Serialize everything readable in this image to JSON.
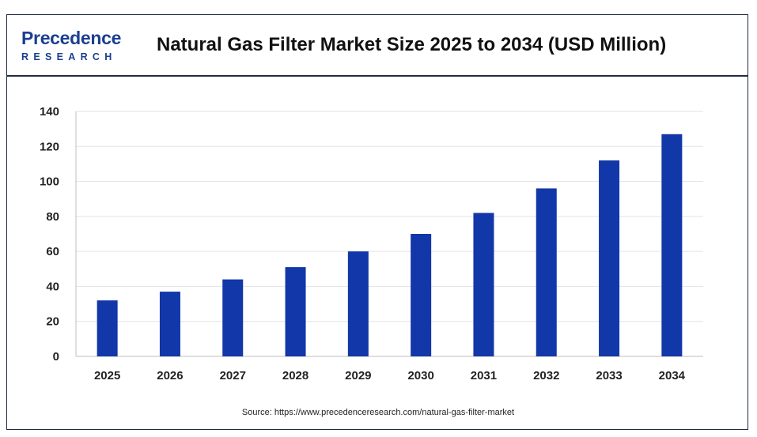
{
  "header": {
    "logo_main": "Precedence",
    "logo_sub": "RESEARCH"
  },
  "chart_data": {
    "type": "bar",
    "title": "Natural Gas Filter Market Size 2025 to 2034 (USD Million)",
    "categories": [
      "2025",
      "2026",
      "2027",
      "2028",
      "2029",
      "2030",
      "2031",
      "2032",
      "2033",
      "2034"
    ],
    "values": [
      32,
      37,
      44,
      51,
      60,
      70,
      82,
      96,
      112,
      127
    ],
    "ylim": [
      0,
      140
    ],
    "yticks": [
      0,
      20,
      40,
      60,
      80,
      100,
      120,
      140
    ],
    "grid": true,
    "bar_color": "#1237a8"
  },
  "source": "Source: https://www.precedenceresearch.com/natural-gas-filter-market"
}
